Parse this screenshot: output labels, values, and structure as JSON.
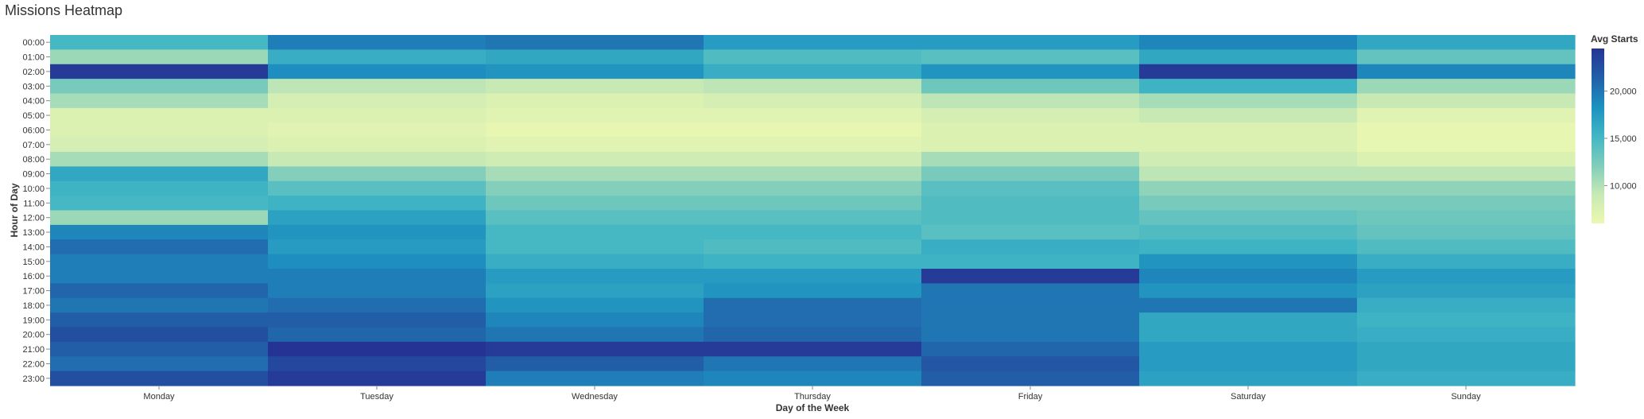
{
  "page_title": "Missions Heatmap",
  "chart_data": {
    "type": "heatmap",
    "xlabel": "Day of the Week",
    "ylabel": "Hour of Day",
    "x": [
      "Monday",
      "Tuesday",
      "Wednesday",
      "Thursday",
      "Friday",
      "Saturday",
      "Sunday"
    ],
    "y": [
      "00:00",
      "01:00",
      "02:00",
      "03:00",
      "04:00",
      "05:00",
      "06:00",
      "07:00",
      "08:00",
      "09:00",
      "10:00",
      "11:00",
      "12:00",
      "13:00",
      "14:00",
      "15:00",
      "16:00",
      "17:00",
      "18:00",
      "19:00",
      "20:00",
      "21:00",
      "22:00",
      "23:00"
    ],
    "values": [
      [
        15000,
        19500,
        20000,
        17500,
        17500,
        19000,
        16500
      ],
      [
        11000,
        16000,
        16500,
        14500,
        14000,
        16500,
        13500
      ],
      [
        24000,
        18500,
        18000,
        16000,
        18000,
        24000,
        19000
      ],
      [
        12500,
        9500,
        9000,
        9500,
        13000,
        15500,
        11000
      ],
      [
        10500,
        8000,
        7500,
        8000,
        9500,
        10500,
        9000
      ],
      [
        7500,
        7500,
        7000,
        7000,
        8000,
        9000,
        7000
      ],
      [
        7500,
        7000,
        6500,
        6500,
        7500,
        7500,
        6500
      ],
      [
        8000,
        7500,
        7000,
        7000,
        7500,
        7500,
        6500
      ],
      [
        10500,
        9000,
        8500,
        8500,
        10500,
        8500,
        7500
      ],
      [
        16500,
        12000,
        10500,
        10500,
        12500,
        9500,
        9500
      ],
      [
        15500,
        14000,
        12000,
        12000,
        14000,
        11500,
        11500
      ],
      [
        15000,
        15500,
        13000,
        13000,
        14500,
        12500,
        12500
      ],
      [
        11000,
        17000,
        14000,
        14000,
        14500,
        13500,
        13000
      ],
      [
        19000,
        18000,
        15000,
        15000,
        14000,
        14500,
        13500
      ],
      [
        20500,
        17500,
        15000,
        14500,
        16000,
        15500,
        14500
      ],
      [
        19500,
        18500,
        16000,
        15500,
        15500,
        18000,
        16000
      ],
      [
        19500,
        19500,
        17500,
        17500,
        24000,
        19000,
        17500
      ],
      [
        21000,
        19500,
        17000,
        18000,
        20000,
        18000,
        17000
      ],
      [
        20000,
        20500,
        18000,
        20500,
        20000,
        20000,
        16000
      ],
      [
        21500,
        21500,
        19000,
        20500,
        20000,
        16500,
        15500
      ],
      [
        22500,
        21000,
        20000,
        21000,
        20000,
        16500,
        16000
      ],
      [
        21500,
        24500,
        24000,
        24000,
        21000,
        17500,
        16500
      ],
      [
        20500,
        23000,
        21500,
        20000,
        22000,
        17500,
        16500
      ],
      [
        22500,
        24000,
        19500,
        19000,
        21500,
        17000,
        16000
      ]
    ],
    "color_scale": {
      "scheme": "yellowgreenblue",
      "domain": [
        6000,
        24500
      ],
      "stops": [
        "#edf8b1",
        "#c7e9b4",
        "#7fcdbb",
        "#41b6c4",
        "#1d91c0",
        "#225ea8",
        "#253494"
      ]
    },
    "legend": {
      "title": "Avg Starts",
      "position": "right",
      "ticks": [
        10000,
        15000,
        20000
      ],
      "tick_labels": [
        "10,000",
        "15,000",
        "20,000"
      ]
    }
  }
}
